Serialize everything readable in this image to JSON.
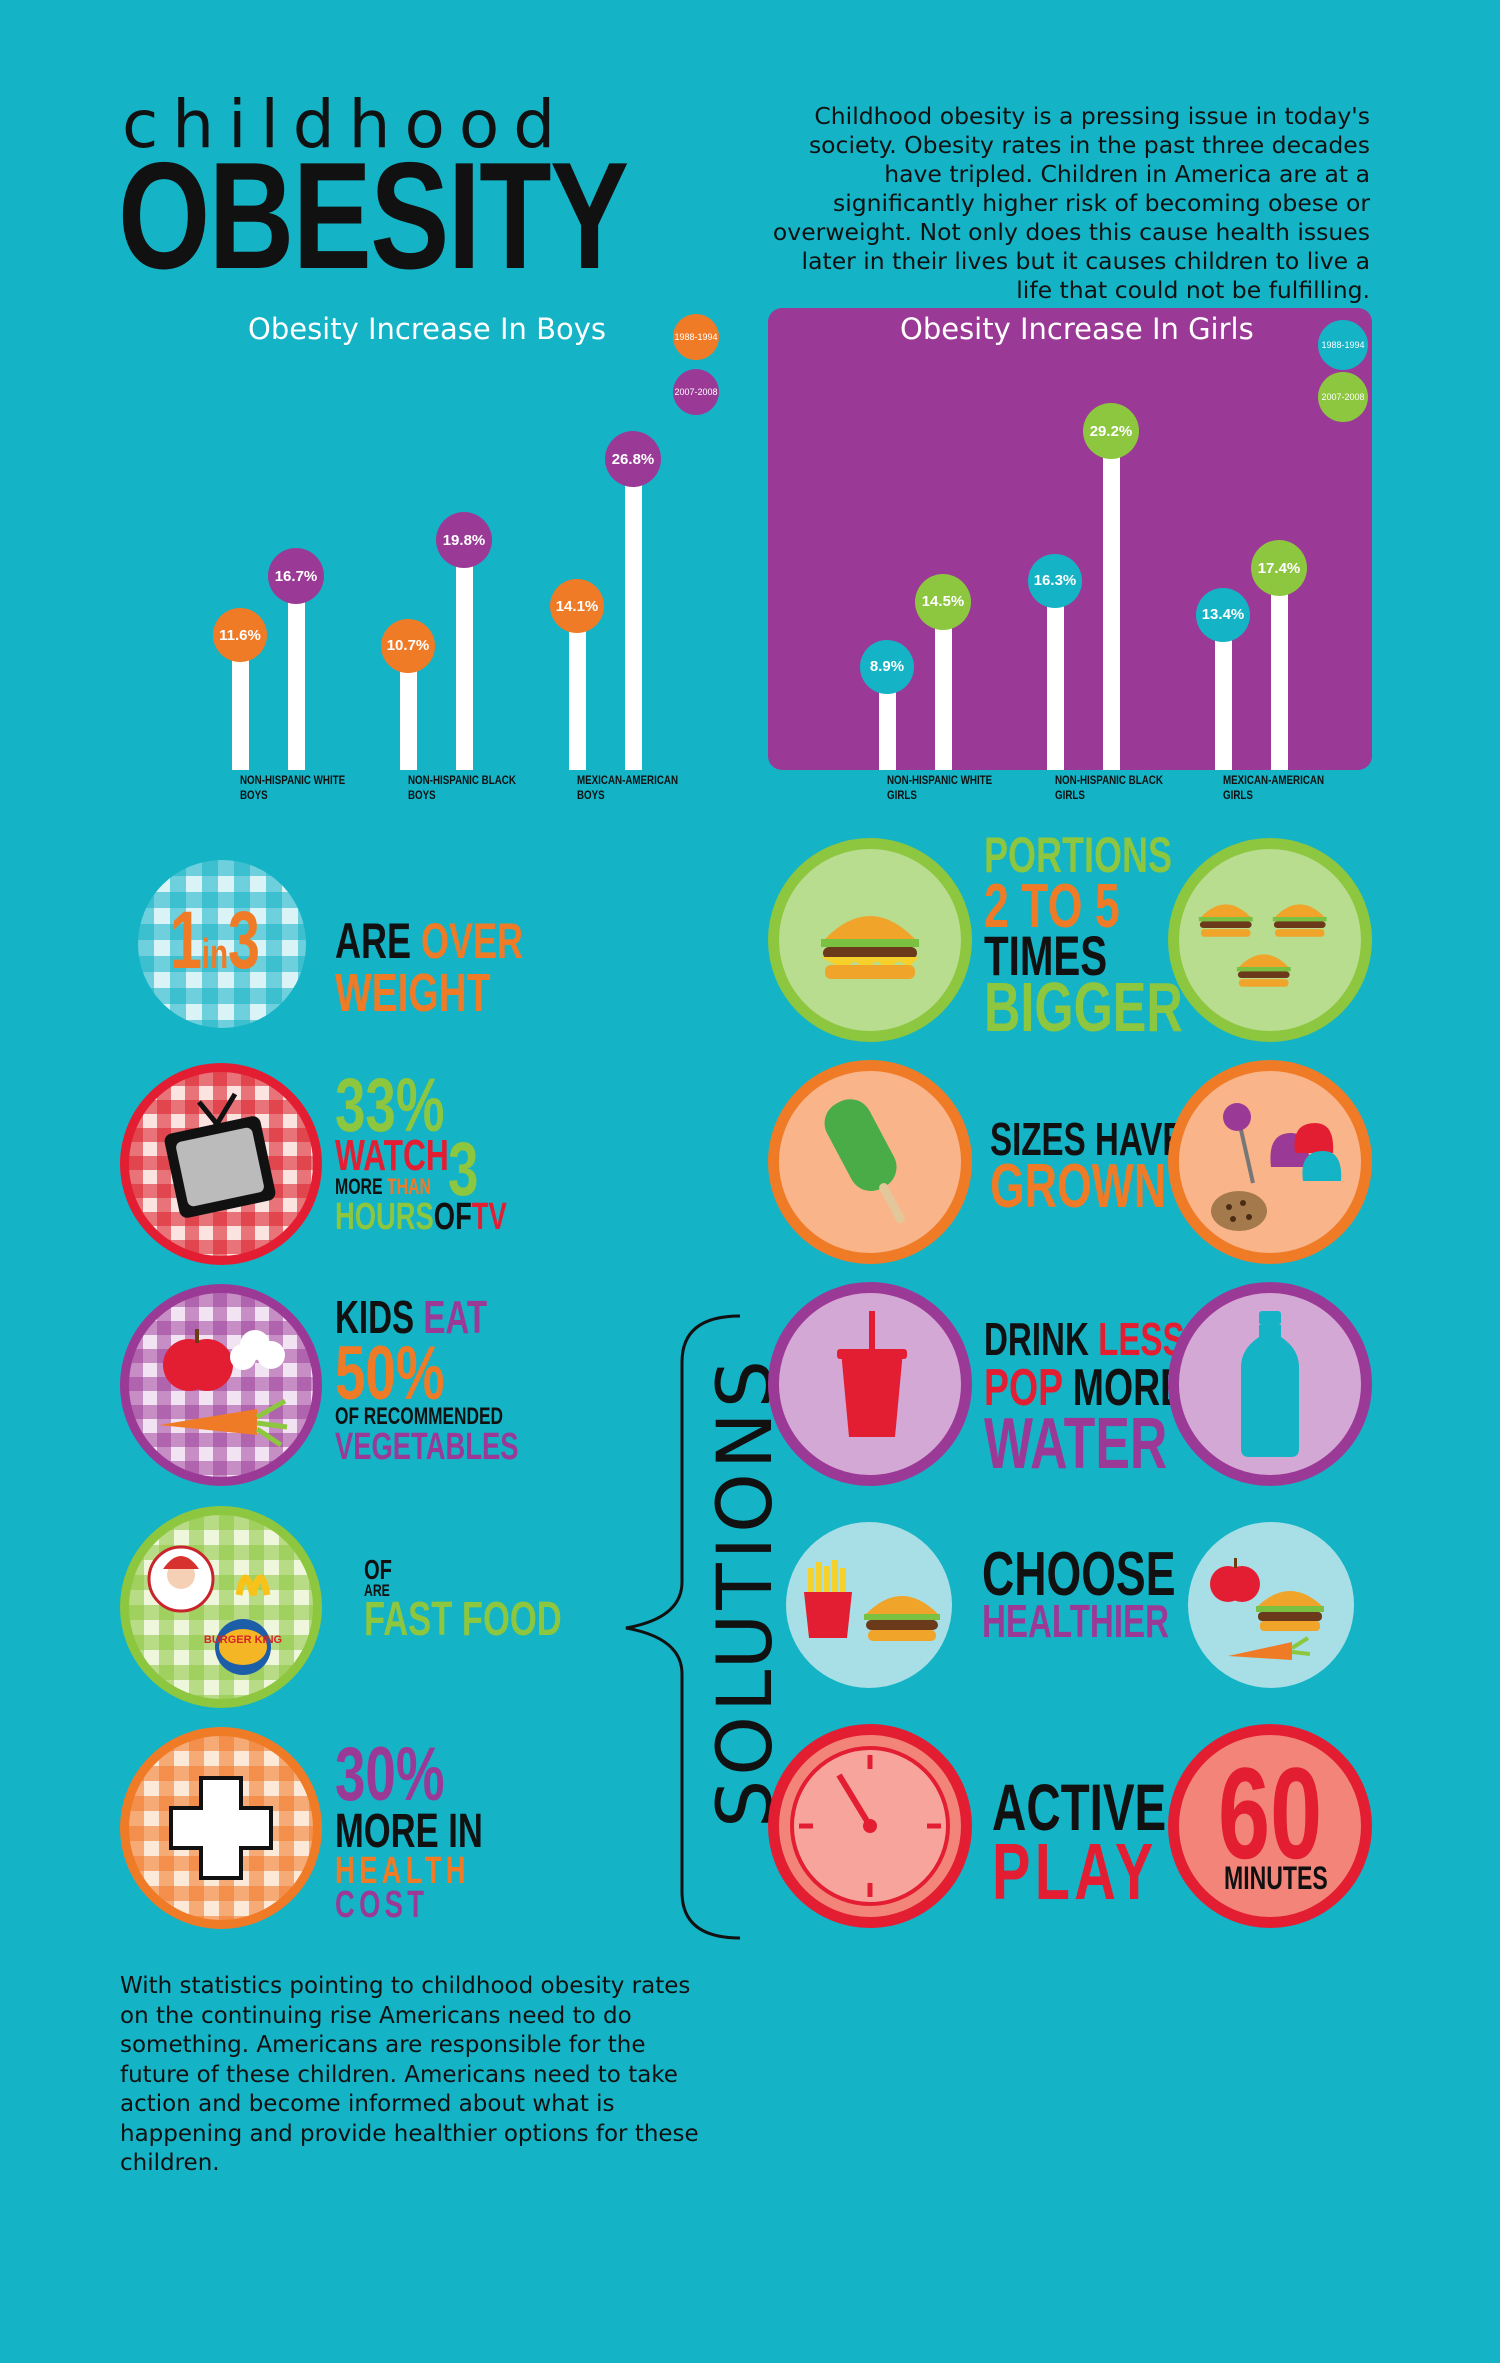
{
  "header": {
    "title_small": "childhood",
    "title_big": "OBESITY",
    "intro": "Childhood obesity is a pressing issue in today's society.  Obesity rates in the past three decades have tripled. Children in America are at a significantly higher risk of becoming obese or overweight. Not only does this cause health issues later in their lives but it causes children to live a life that could not be fulfilling."
  },
  "colors": {
    "background": "#14b3c6",
    "orange": "#f07b27",
    "purple": "#9b3a96",
    "green": "#8dc63f",
    "red": "#e31e33",
    "cyan": "#14b3c6"
  },
  "chart_data": [
    {
      "type": "bar",
      "title": "Obesity Increase In Boys",
      "categories": [
        "NON-HISPANIC WHITE BOYS",
        "NON-HISPANIC BLACK BOYS",
        "MEXICAN-AMERICAN BOYS"
      ],
      "series": [
        {
          "name": "1988-1994",
          "color": "#f07b27",
          "values": [
            11.6,
            10.7,
            14.1
          ],
          "labels": [
            "11.6%",
            "10.7%",
            "14.1%"
          ]
        },
        {
          "name": "2007-2008",
          "color": "#9b3a96",
          "values": [
            16.7,
            19.8,
            26.8
          ],
          "labels": [
            "16.7%",
            "19.8%",
            "26.8%"
          ]
        }
      ],
      "legend": "top-right",
      "grid": false
    },
    {
      "type": "bar",
      "title": "Obesity Increase In Girls",
      "categories": [
        "NON-HISPANIC WHITE GIRLS",
        "NON-HISPANIC BLACK GIRLS",
        "MEXICAN-AMERICAN GIRLS"
      ],
      "series": [
        {
          "name": "1988-1994",
          "color": "#14b3c6",
          "values": [
            8.9,
            16.3,
            13.4
          ],
          "labels": [
            "8.9%",
            "16.3%",
            "13.4%"
          ]
        },
        {
          "name": "2007-2008",
          "color": "#8dc63f",
          "values": [
            14.5,
            29.2,
            17.4
          ],
          "labels": [
            "14.5%",
            "29.2%",
            "17.4%"
          ]
        }
      ],
      "legend": "top-right",
      "grid": false
    }
  ],
  "facts": {
    "f1": {
      "ratio_1": "1",
      "ratio_in": "in",
      "ratio_3": "3",
      "are": "ARE",
      "over": "OVER",
      "weight": "WEIGHT",
      "icon": "gingham-icon"
    },
    "f2": {
      "pct": "33%",
      "watch": "WATCH",
      "num": "3",
      "more": "MORE",
      "than": "THAN",
      "hours": "HOURS",
      "of": "OF",
      "tv": "TV",
      "icon": "television-icon"
    },
    "f3": {
      "kids": "KIDS",
      "eat": "EAT",
      "pct": "50%",
      "of_rec": "OF RECOMMENDED",
      "veg": "VEGETABLES",
      "icon": "vegetables-icon"
    },
    "f4": {
      "of": "OF",
      "are": "ARE",
      "fast": "FAST FOOD",
      "icon": "fast-food-logos-icon",
      "brand": "BURGER KING"
    },
    "f5": {
      "pct": "30%",
      "more_in": "MORE IN",
      "health": "HEALTH",
      "cost": "COST",
      "icon": "medical-cross-icon"
    }
  },
  "solutions": {
    "label": "SOLUTIONS",
    "s1": {
      "portions": "PORTIONS",
      "range": "2 TO 5",
      "times": "TIMES",
      "bigger": "BIGGER",
      "icon_left": "burger-icon",
      "icon_right": "three-burgers-icon"
    },
    "s2": {
      "sizes": "SIZES HAVE",
      "grown": "GROWN",
      "icon_left": "popsicle-icon",
      "icon_right": "candy-cookie-icon"
    },
    "s3": {
      "drink": "DRINK",
      "less": "LESS",
      "pop": "POP",
      "more": "MORE",
      "water": "WATER",
      "icon_left": "soda-cup-icon",
      "icon_right": "water-bottle-icon"
    },
    "s4": {
      "choose": "CHOOSE",
      "healthier": "HEALTHIER",
      "icon_left": "fries-burger-icon",
      "icon_right": "healthy-food-icon"
    },
    "s5": {
      "active": "ACTIVE",
      "play": "PLAY",
      "sixty": "60",
      "minutes": "MINUTES",
      "icon_left": "clock-icon"
    }
  },
  "footer": {
    "text": "With statistics pointing to childhood obesity rates on the continuing rise Americans need to do something. Americans are responsible for the future of these children. Americans need to take action and become informed about what is happening and provide healthier options for these children."
  }
}
